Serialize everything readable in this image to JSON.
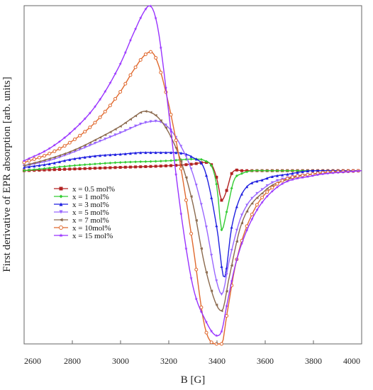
{
  "chart_data": {
    "type": "line",
    "xlabel": "B [G]",
    "ylabel": "First derivative of EPR absorption [arb. units]",
    "xlim": [
      2600,
      4000
    ],
    "xticks": [
      2600,
      2800,
      3000,
      3200,
      3400,
      3600,
      3800,
      4000
    ],
    "ylim": [
      -1.05,
      1.0
    ],
    "grid": false,
    "legend_position": "center-left",
    "series": [
      {
        "name": "x = 0.5 mol%",
        "color": "#b22222",
        "marker": "square",
        "x": [
          2600,
          2800,
          3000,
          3200,
          3300,
          3350,
          3380,
          3400,
          3420,
          3440,
          3460,
          3500,
          3600,
          3800,
          4000
        ],
        "y": [
          0.0,
          0.01,
          0.02,
          0.03,
          0.04,
          0.05,
          0.03,
          -0.05,
          -0.18,
          -0.12,
          -0.02,
          0.0,
          0.0,
          0.0,
          0.0
        ]
      },
      {
        "name": "x = 1 mol%",
        "color": "#33cc33",
        "marker": "diamond",
        "x": [
          2600,
          2800,
          3000,
          3200,
          3300,
          3350,
          3380,
          3400,
          3420,
          3440,
          3470,
          3500,
          3600,
          3800,
          4000
        ],
        "y": [
          0.0,
          0.03,
          0.05,
          0.06,
          0.07,
          0.06,
          0.02,
          -0.1,
          -0.36,
          -0.25,
          -0.06,
          -0.02,
          0.0,
          0.0,
          0.0
        ]
      },
      {
        "name": "x = 3 mol%",
        "color": "#1f1fe0",
        "marker": "triangle-up",
        "x": [
          2600,
          2700,
          2800,
          2900,
          3000,
          3100,
          3200,
          3300,
          3350,
          3400,
          3430,
          3460,
          3500,
          3600,
          3700,
          3800,
          4000
        ],
        "y": [
          0.02,
          0.04,
          0.07,
          0.09,
          0.1,
          0.11,
          0.11,
          0.08,
          0.0,
          -0.35,
          -0.65,
          -0.35,
          -0.15,
          -0.05,
          -0.02,
          0.0,
          0.0
        ]
      },
      {
        "name": "x = 5 mol%",
        "color": "#9966ff",
        "marker": "triangle-down",
        "x": [
          2600,
          2700,
          2800,
          2900,
          3000,
          3100,
          3150,
          3200,
          3250,
          3300,
          3350,
          3400,
          3420,
          3450,
          3500,
          3600,
          3700,
          3800,
          4000
        ],
        "y": [
          0.03,
          0.06,
          0.11,
          0.17,
          0.23,
          0.29,
          0.3,
          0.26,
          0.15,
          -0.02,
          -0.3,
          -0.68,
          -0.75,
          -0.55,
          -0.28,
          -0.1,
          -0.04,
          -0.02,
          0.0
        ]
      },
      {
        "name": "x = 7 mol%",
        "color": "#8b6a4e",
        "marker": "triangle-left",
        "x": [
          2600,
          2700,
          2800,
          2900,
          3000,
          3050,
          3100,
          3150,
          3200,
          3250,
          3300,
          3350,
          3400,
          3420,
          3450,
          3500,
          3600,
          3700,
          3800,
          4000
        ],
        "y": [
          0.03,
          0.07,
          0.12,
          0.19,
          0.27,
          0.32,
          0.36,
          0.33,
          0.23,
          0.06,
          -0.2,
          -0.58,
          -0.82,
          -0.85,
          -0.65,
          -0.33,
          -0.12,
          -0.05,
          -0.02,
          0.0
        ]
      },
      {
        "name": "x = 10mol%",
        "color": "#e0692e",
        "marker": "circle-open",
        "x": [
          2600,
          2700,
          2800,
          2900,
          3000,
          3050,
          3100,
          3125,
          3150,
          3200,
          3250,
          3300,
          3350,
          3400,
          3420,
          3440,
          3480,
          3550,
          3650,
          3800,
          4000
        ],
        "y": [
          0.05,
          0.1,
          0.18,
          0.3,
          0.48,
          0.6,
          0.7,
          0.72,
          0.67,
          0.4,
          0.02,
          -0.45,
          -0.95,
          -1.05,
          -1.05,
          -0.88,
          -0.55,
          -0.25,
          -0.08,
          -0.02,
          0.0
        ]
      },
      {
        "name": "x = 15 mol%",
        "color": "#9933ff",
        "marker": "star",
        "x": [
          2600,
          2700,
          2800,
          2900,
          3000,
          3050,
          3100,
          3120,
          3150,
          3180,
          3200,
          3250,
          3300,
          3350,
          3400,
          3420,
          3440,
          3480,
          3550,
          3650,
          3800,
          4000
        ],
        "y": [
          0.06,
          0.13,
          0.24,
          0.4,
          0.65,
          0.82,
          0.97,
          1.0,
          0.9,
          0.6,
          0.35,
          -0.25,
          -0.7,
          -0.9,
          -1.0,
          -0.97,
          -0.82,
          -0.55,
          -0.28,
          -0.1,
          -0.03,
          0.0
        ]
      }
    ]
  }
}
